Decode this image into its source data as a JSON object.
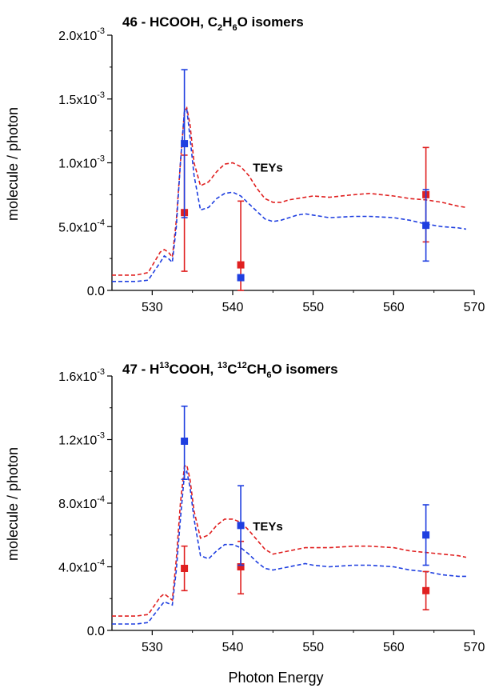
{
  "chart_data": [
    {
      "type": "line",
      "title": {
        "text": "46 - HCOOH, C2H6O isomers",
        "plain": "46 - HCOOH, C",
        "sub1": "2",
        "mid": "H",
        "sub2": "6",
        "tail": "O isomers"
      },
      "xlabel": "",
      "ylabel": "molecule / photon",
      "xlim": [
        525,
        570
      ],
      "ylim": [
        0,
        0.002
      ],
      "xticks": [
        530,
        540,
        550,
        560,
        570
      ],
      "yticks": [
        {
          "value": 0,
          "mant": "0.0",
          "exp": ""
        },
        {
          "value": 0.0005,
          "mant": "5.0x10",
          "exp": "-4"
        },
        {
          "value": 0.001,
          "mant": "1.0x10",
          "exp": "-3"
        },
        {
          "value": 0.0015,
          "mant": "1.5x10",
          "exp": "-3"
        },
        {
          "value": 0.002,
          "mant": "2.0x10",
          "exp": "-3"
        }
      ],
      "annotation": {
        "text": "TEYs",
        "x": 542.5,
        "y": 0.00093
      },
      "lines": [
        {
          "color": "#e02020",
          "points": [
            [
              525,
              0.00012
            ],
            [
              528,
              0.00012
            ],
            [
              529.5,
              0.00014
            ],
            [
              531,
              0.0003
            ],
            [
              531.5,
              0.00032
            ],
            [
              532,
              0.0003
            ],
            [
              532.5,
              0.00026
            ],
            [
              533,
              0.00055
            ],
            [
              533.5,
              0.001
            ],
            [
              534,
              0.0014
            ],
            [
              534.3,
              0.00143
            ],
            [
              534.7,
              0.0013
            ],
            [
              535.2,
              0.001
            ],
            [
              536,
              0.00082
            ],
            [
              537,
              0.00085
            ],
            [
              538,
              0.00093
            ],
            [
              539,
              0.00099
            ],
            [
              540,
              0.001
            ],
            [
              541,
              0.00097
            ],
            [
              542,
              0.0009
            ],
            [
              543,
              0.0008
            ],
            [
              544,
              0.00072
            ],
            [
              545,
              0.00069
            ],
            [
              546,
              0.00069
            ],
            [
              547,
              0.00071
            ],
            [
              548,
              0.00072
            ],
            [
              549,
              0.00073
            ],
            [
              550,
              0.00074
            ],
            [
              552,
              0.00073
            ],
            [
              555,
              0.00075
            ],
            [
              557,
              0.00076
            ],
            [
              560,
              0.00074
            ],
            [
              562,
              0.00072
            ],
            [
              564,
              0.00071
            ],
            [
              566,
              0.00069
            ],
            [
              568,
              0.00066
            ],
            [
              569,
              0.00065
            ]
          ]
        },
        {
          "color": "#1f3fe0",
          "points": [
            [
              525,
              7e-05
            ],
            [
              528,
              7e-05
            ],
            [
              529.5,
              8e-05
            ],
            [
              531,
              0.00022
            ],
            [
              531.5,
              0.00027
            ],
            [
              532,
              0.00025
            ],
            [
              532.5,
              0.00022
            ],
            [
              533,
              0.0005
            ],
            [
              533.5,
              0.001
            ],
            [
              534,
              0.0014
            ],
            [
              534.3,
              0.00142
            ],
            [
              534.7,
              0.0012
            ],
            [
              535.2,
              0.0009
            ],
            [
              536,
              0.00063
            ],
            [
              537,
              0.00065
            ],
            [
              538,
              0.00072
            ],
            [
              539,
              0.00076
            ],
            [
              540,
              0.00077
            ],
            [
              541,
              0.00074
            ],
            [
              542,
              0.00068
            ],
            [
              543,
              0.00062
            ],
            [
              544,
              0.00056
            ],
            [
              545,
              0.00054
            ],
            [
              546,
              0.00055
            ],
            [
              547,
              0.00057
            ],
            [
              548,
              0.00059
            ],
            [
              549,
              0.0006
            ],
            [
              550,
              0.00059
            ],
            [
              552,
              0.00057
            ],
            [
              555,
              0.00058
            ],
            [
              557,
              0.00058
            ],
            [
              560,
              0.00057
            ],
            [
              562,
              0.00055
            ],
            [
              564,
              0.00052
            ],
            [
              566,
              0.0005
            ],
            [
              568,
              0.00049
            ],
            [
              569,
              0.00048
            ]
          ]
        }
      ],
      "points": [
        {
          "color": "#e02020",
          "x": 534,
          "y": 0.00061,
          "ylow": 0.00015,
          "yhigh": 0.00106
        },
        {
          "color": "#1f3fe0",
          "x": 534,
          "y": 0.00115,
          "ylow": 0.00057,
          "yhigh": 0.00173
        },
        {
          "color": "#e02020",
          "x": 541,
          "y": 0.0002,
          "ylow": 0,
          "yhigh": 0.0007
        },
        {
          "color": "#1f3fe0",
          "x": 541,
          "y": 0.0001,
          "ylow": 0.0001,
          "yhigh": 0.0001
        },
        {
          "color": "#e02020",
          "x": 564,
          "y": 0.00075,
          "ylow": 0.00038,
          "yhigh": 0.00112
        },
        {
          "color": "#1f3fe0",
          "x": 564,
          "y": 0.00051,
          "ylow": 0.00023,
          "yhigh": 0.00079
        }
      ]
    },
    {
      "type": "line",
      "title": {
        "text": "47 - H13COOH, 13C12CH6O isomers",
        "p1": "47 - H",
        "sup1": "13",
        "p2": "COOH, ",
        "sup2": "13",
        "p3": "C",
        "sup3": "12",
        "p4": "CH",
        "sub1": "6",
        "p5": "O isomers"
      },
      "xlabel": "Photon Energy",
      "ylabel": "molecule / photon",
      "xlim": [
        525,
        570
      ],
      "ylim": [
        0,
        0.0016
      ],
      "xticks": [
        530,
        540,
        550,
        560,
        570
      ],
      "yticks": [
        {
          "value": 0,
          "mant": "0.0",
          "exp": ""
        },
        {
          "value": 0.0004,
          "mant": "4.0x10",
          "exp": "-4"
        },
        {
          "value": 0.0008,
          "mant": "8.0x10",
          "exp": "-4"
        },
        {
          "value": 0.0012,
          "mant": "1.2x10",
          "exp": "-3"
        },
        {
          "value": 0.0016,
          "mant": "1.6x10",
          "exp": "-3"
        }
      ],
      "annotation": {
        "text": "TEYs",
        "x": 542.5,
        "y": 0.00063
      },
      "lines": [
        {
          "color": "#e02020",
          "points": [
            [
              525,
              9e-05
            ],
            [
              528,
              9e-05
            ],
            [
              529.5,
              0.0001
            ],
            [
              531,
              0.00021
            ],
            [
              531.5,
              0.00023
            ],
            [
              532,
              0.00021
            ],
            [
              532.5,
              0.00019
            ],
            [
              533,
              0.00045
            ],
            [
              533.5,
              0.0008
            ],
            [
              534,
              0.00103
            ],
            [
              534.3,
              0.00104
            ],
            [
              534.7,
              0.00095
            ],
            [
              535.2,
              0.00075
            ],
            [
              536,
              0.00058
            ],
            [
              537,
              0.0006
            ],
            [
              538,
              0.00066
            ],
            [
              539,
              0.0007
            ],
            [
              540,
              0.0007
            ],
            [
              541,
              0.00068
            ],
            [
              542,
              0.00063
            ],
            [
              543,
              0.00057
            ],
            [
              544,
              0.00051
            ],
            [
              545,
              0.00048
            ],
            [
              546,
              0.00049
            ],
            [
              547,
              0.0005
            ],
            [
              548,
              0.00051
            ],
            [
              549,
              0.00052
            ],
            [
              550,
              0.00052
            ],
            [
              552,
              0.00052
            ],
            [
              555,
              0.00053
            ],
            [
              557,
              0.00053
            ],
            [
              560,
              0.00052
            ],
            [
              562,
              0.0005
            ],
            [
              564,
              0.00049
            ],
            [
              566,
              0.00048
            ],
            [
              568,
              0.00047
            ],
            [
              569,
              0.00046
            ]
          ]
        },
        {
          "color": "#1f3fe0",
          "points": [
            [
              525,
              4e-05
            ],
            [
              528,
              4e-05
            ],
            [
              529.5,
              5e-05
            ],
            [
              531,
              0.00015
            ],
            [
              531.5,
              0.00018
            ],
            [
              532,
              0.00017
            ],
            [
              532.5,
              0.00016
            ],
            [
              533,
              0.00038
            ],
            [
              533.5,
              0.0007
            ],
            [
              534,
              0.00098
            ],
            [
              534.3,
              0.001
            ],
            [
              534.7,
              0.0009
            ],
            [
              535.2,
              0.0007
            ],
            [
              536,
              0.00047
            ],
            [
              537,
              0.00045
            ],
            [
              538,
              0.0005
            ],
            [
              539,
              0.00054
            ],
            [
              540,
              0.00054
            ],
            [
              541,
              0.00052
            ],
            [
              542,
              0.00048
            ],
            [
              543,
              0.00043
            ],
            [
              544,
              0.00039
            ],
            [
              545,
              0.00038
            ],
            [
              546,
              0.00039
            ],
            [
              547,
              0.0004
            ],
            [
              548,
              0.00041
            ],
            [
              549,
              0.00042
            ],
            [
              550,
              0.00041
            ],
            [
              552,
              0.0004
            ],
            [
              555,
              0.00041
            ],
            [
              557,
              0.00041
            ],
            [
              560,
              0.0004
            ],
            [
              562,
              0.00038
            ],
            [
              564,
              0.00037
            ],
            [
              566,
              0.00035
            ],
            [
              568,
              0.00034
            ],
            [
              569,
              0.00034
            ]
          ]
        }
      ],
      "points": [
        {
          "color": "#e02020",
          "x": 534,
          "y": 0.00039,
          "ylow": 0.00025,
          "yhigh": 0.00053
        },
        {
          "color": "#1f3fe0",
          "x": 534,
          "y": 0.00119,
          "ylow": 0.00095,
          "yhigh": 0.00141
        },
        {
          "color": "#e02020",
          "x": 541,
          "y": 0.0004,
          "ylow": 0.00023,
          "yhigh": 0.00056
        },
        {
          "color": "#1f3fe0",
          "x": 541,
          "y": 0.00066,
          "ylow": 0.00041,
          "yhigh": 0.00091
        },
        {
          "color": "#e02020",
          "x": 564,
          "y": 0.00025,
          "ylow": 0.00013,
          "yhigh": 0.00037
        },
        {
          "color": "#1f3fe0",
          "x": 564,
          "y": 0.0006,
          "ylow": 0.00041,
          "yhigh": 0.00079
        }
      ]
    }
  ]
}
